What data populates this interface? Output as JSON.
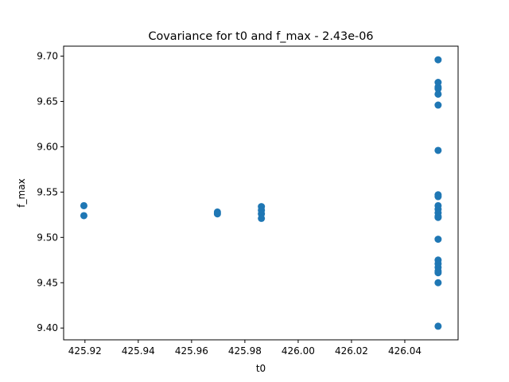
{
  "chart_data": {
    "type": "scatter",
    "title": "Covariance for t0 and f_max - 2.43e-06",
    "xlabel": "t0",
    "ylabel": "f_max",
    "xlim": [
      425.912,
      426.06
    ],
    "ylim": [
      9.387,
      9.711
    ],
    "xticks": [
      425.92,
      425.94,
      425.96,
      425.98,
      426.0,
      426.02,
      426.04
    ],
    "xtick_labels": [
      "425.92",
      "425.94",
      "425.96",
      "425.98",
      "426.00",
      "426.02",
      "426.04"
    ],
    "yticks": [
      9.4,
      9.45,
      9.5,
      9.55,
      9.6,
      9.65,
      9.7
    ],
    "ytick_labels": [
      "9.40",
      "9.45",
      "9.50",
      "9.55",
      "9.60",
      "9.65",
      "9.70"
    ],
    "grid": false,
    "marker_color": "#1f77b4",
    "points": [
      {
        "x": 425.9196,
        "y": 9.535
      },
      {
        "x": 425.9196,
        "y": 9.524
      },
      {
        "x": 425.9697,
        "y": 9.528
      },
      {
        "x": 425.9697,
        "y": 9.526
      },
      {
        "x": 425.9862,
        "y": 9.534
      },
      {
        "x": 425.9862,
        "y": 9.53
      },
      {
        "x": 425.9862,
        "y": 9.526
      },
      {
        "x": 425.9862,
        "y": 9.521
      },
      {
        "x": 426.0525,
        "y": 9.696
      },
      {
        "x": 426.0525,
        "y": 9.671
      },
      {
        "x": 426.0525,
        "y": 9.666
      },
      {
        "x": 426.0525,
        "y": 9.664
      },
      {
        "x": 426.0525,
        "y": 9.658
      },
      {
        "x": 426.0525,
        "y": 9.646
      },
      {
        "x": 426.0525,
        "y": 9.596
      },
      {
        "x": 426.0525,
        "y": 9.547
      },
      {
        "x": 426.0525,
        "y": 9.545
      },
      {
        "x": 426.0525,
        "y": 9.535
      },
      {
        "x": 426.0525,
        "y": 9.531
      },
      {
        "x": 426.0525,
        "y": 9.527
      },
      {
        "x": 426.0525,
        "y": 9.523
      },
      {
        "x": 426.0525,
        "y": 9.522
      },
      {
        "x": 426.0525,
        "y": 9.498
      },
      {
        "x": 426.0525,
        "y": 9.475
      },
      {
        "x": 426.0525,
        "y": 9.471
      },
      {
        "x": 426.0525,
        "y": 9.467
      },
      {
        "x": 426.0525,
        "y": 9.463
      },
      {
        "x": 426.0525,
        "y": 9.461
      },
      {
        "x": 426.0525,
        "y": 9.45
      },
      {
        "x": 426.0525,
        "y": 9.402
      }
    ]
  }
}
